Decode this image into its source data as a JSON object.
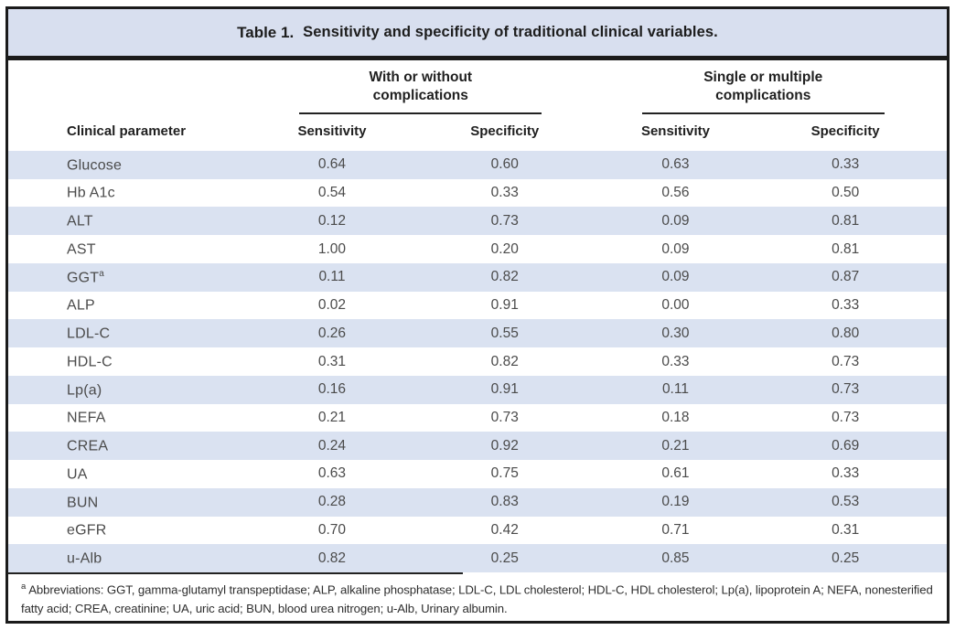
{
  "table": {
    "title": {
      "label": "Table 1.",
      "text": "Sensitivity and specificity of traditional clinical variables."
    },
    "groups": [
      {
        "line1": "With or without",
        "line2": "complications"
      },
      {
        "line1": "Single or multiple",
        "line2": "complications"
      }
    ],
    "parameter_header": "Clinical parameter",
    "sub_headers": [
      "Sensitivity",
      "Specificity",
      "Sensitivity",
      "Specificity"
    ],
    "rows": [
      {
        "parameter": "Glucose",
        "sup": "",
        "values": [
          "0.64",
          "0.60",
          "0.63",
          "0.33"
        ]
      },
      {
        "parameter": "Hb A1c",
        "sup": "",
        "values": [
          "0.54",
          "0.33",
          "0.56",
          "0.50"
        ]
      },
      {
        "parameter": "ALT",
        "sup": "",
        "values": [
          "0.12",
          "0.73",
          "0.09",
          "0.81"
        ]
      },
      {
        "parameter": "AST",
        "sup": "",
        "values": [
          "1.00",
          "0.20",
          "0.09",
          "0.81"
        ]
      },
      {
        "parameter": "GGT",
        "sup": "a",
        "values": [
          "0.11",
          "0.82",
          "0.09",
          "0.87"
        ]
      },
      {
        "parameter": "ALP",
        "sup": "",
        "values": [
          "0.02",
          "0.91",
          "0.00",
          "0.33"
        ]
      },
      {
        "parameter": "LDL-C",
        "sup": "",
        "values": [
          "0.26",
          "0.55",
          "0.30",
          "0.80"
        ]
      },
      {
        "parameter": "HDL-C",
        "sup": "",
        "values": [
          "0.31",
          "0.82",
          "0.33",
          "0.73"
        ]
      },
      {
        "parameter": "Lp(a)",
        "sup": "",
        "values": [
          "0.16",
          "0.91",
          "0.11",
          "0.73"
        ]
      },
      {
        "parameter": "NEFA",
        "sup": "",
        "values": [
          "0.21",
          "0.73",
          "0.18",
          "0.73"
        ]
      },
      {
        "parameter": "CREA",
        "sup": "",
        "values": [
          "0.24",
          "0.92",
          "0.21",
          "0.69"
        ]
      },
      {
        "parameter": "UA",
        "sup": "",
        "values": [
          "0.63",
          "0.75",
          "0.61",
          "0.33"
        ]
      },
      {
        "parameter": "BUN",
        "sup": "",
        "values": [
          "0.28",
          "0.83",
          "0.19",
          "0.53"
        ]
      },
      {
        "parameter": "eGFR",
        "sup": "",
        "values": [
          "0.70",
          "0.42",
          "0.71",
          "0.31"
        ]
      },
      {
        "parameter": "u-Alb",
        "sup": "",
        "values": [
          "0.82",
          "0.25",
          "0.85",
          "0.25"
        ]
      }
    ],
    "footnote": {
      "sup": "a",
      "text": "Abbreviations: GGT, gamma-glutamyl transpeptidase; ALP, alkaline phosphatase; LDL-C, LDL cholesterol; HDL-C, HDL cholesterol; Lp(a), lipoprotein A; NEFA, nonesterified fatty acid; CREA, creatinine; UA, uric acid; BUN, blood urea nitrogen; u-Alb, Urinary albumin."
    }
  },
  "colors": {
    "title_bg": "#d8dfef",
    "stripe_bg": "#dae2f1",
    "border": "#1b1b1b",
    "body_text": "#4b4b4b",
    "heading_text": "#1f1f1f"
  },
  "chart_data": {
    "type": "table",
    "title": "Table 1. Sensitivity and specificity of traditional clinical variables.",
    "column_groups": [
      "With or without complications",
      "Single or multiple complications"
    ],
    "columns": [
      "Clinical parameter",
      "Sensitivity (with or without complications)",
      "Specificity (with or without complications)",
      "Sensitivity (single or multiple complications)",
      "Specificity (single or multiple complications)"
    ],
    "rows": [
      [
        "Glucose",
        0.64,
        0.6,
        0.63,
        0.33
      ],
      [
        "Hb A1c",
        0.54,
        0.33,
        0.56,
        0.5
      ],
      [
        "ALT",
        0.12,
        0.73,
        0.09,
        0.81
      ],
      [
        "AST",
        1.0,
        0.2,
        0.09,
        0.81
      ],
      [
        "GGT",
        0.11,
        0.82,
        0.09,
        0.87
      ],
      [
        "ALP",
        0.02,
        0.91,
        0.0,
        0.33
      ],
      [
        "LDL-C",
        0.26,
        0.55,
        0.3,
        0.8
      ],
      [
        "HDL-C",
        0.31,
        0.82,
        0.33,
        0.73
      ],
      [
        "Lp(a)",
        0.16,
        0.91,
        0.11,
        0.73
      ],
      [
        "NEFA",
        0.21,
        0.73,
        0.18,
        0.73
      ],
      [
        "CREA",
        0.24,
        0.92,
        0.21,
        0.69
      ],
      [
        "UA",
        0.63,
        0.75,
        0.61,
        0.33
      ],
      [
        "BUN",
        0.28,
        0.83,
        0.19,
        0.53
      ],
      [
        "eGFR",
        0.7,
        0.42,
        0.71,
        0.31
      ],
      [
        "u-Alb",
        0.82,
        0.25,
        0.85,
        0.25
      ]
    ],
    "footnote": "a Abbreviations: GGT, gamma-glutamyl transpeptidase; ALP, alkaline phosphatase; LDL-C, LDL cholesterol; HDL-C, HDL cholesterol; Lp(a), lipoprotein A; NEFA, nonesterified fatty acid; CREA, creatinine; UA, uric acid; BUN, blood urea nitrogen; u-Alb, Urinary albumin."
  }
}
